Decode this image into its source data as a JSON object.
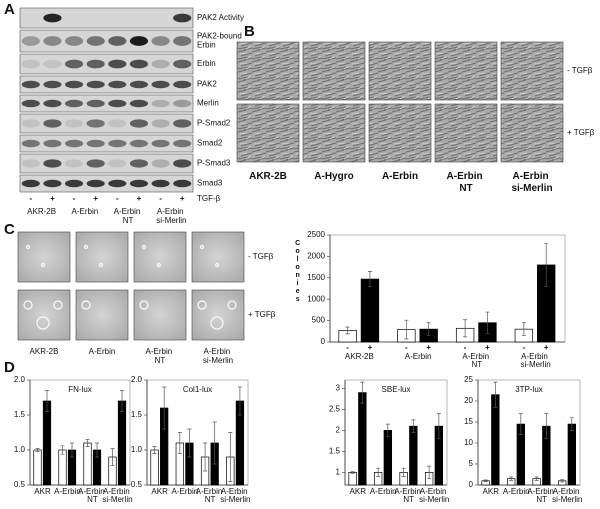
{
  "panel_labels": [
    "A",
    "B",
    "C",
    "D"
  ],
  "blot": {
    "rows": [
      [
        "PAK2 Activity"
      ],
      [
        "PAK2-bound",
        "Erbin"
      ],
      [
        "Erbin"
      ],
      [
        "PAK2"
      ],
      [
        "Merlin"
      ],
      [
        "P-Smad2"
      ],
      [
        "Smad2"
      ],
      [
        "P-Smad3"
      ],
      [
        "Smad3"
      ]
    ],
    "lanes": [
      "-",
      "+",
      "-",
      "+",
      "-",
      "+",
      "-",
      "+"
    ],
    "treatment": "TGF-β",
    "cells": [
      "AKR-2B",
      "A-Erbin",
      "A-Erbin NT",
      "A-Erbin si-Merlin"
    ]
  },
  "morphology": {
    "cells": [
      "AKR-2B",
      "A-Hygro",
      "A-Erbin",
      "A-Erbin NT",
      "A-Erbin si-Merlin"
    ],
    "conditions": [
      "- TGFβ",
      "+ TGFβ"
    ]
  },
  "soft_agar": {
    "cells": [
      "AKR-2B",
      "A-Erbin",
      "A-Erbin NT",
      "A-Erbin si-Merlin"
    ],
    "conditions": [
      "- TGFβ",
      "+ TGFβ"
    ]
  },
  "chart_data": [
    {
      "type": "bar",
      "y_label": "Colonies",
      "categories": [
        "AKR-2B",
        "A-Erbin",
        "A-Erbin NT",
        "A-Erbin si-Merlin"
      ],
      "series": [
        {
          "name": "-",
          "color": "#ffffff",
          "values": [
            270,
            290,
            320,
            300
          ],
          "errors": [
            80,
            220,
            200,
            150
          ]
        },
        {
          "name": "+",
          "color": "#000000",
          "values": [
            1470,
            300,
            450,
            1800
          ],
          "errors": [
            180,
            150,
            250,
            500
          ]
        }
      ],
      "ylim": [
        0,
        2500
      ],
      "yticks": [
        0,
        500,
        1000,
        1500,
        2000,
        2500
      ]
    },
    {
      "type": "bar",
      "title": "FN-lux",
      "categories": [
        "AKR",
        "A-Erbin",
        "A-Erbin NT",
        "A-Erbin si-Merlin"
      ],
      "series": [
        {
          "color": "#ffffff",
          "values": [
            1.0,
            1.0,
            1.1,
            0.9
          ],
          "errors": [
            0.02,
            0.06,
            0.05,
            0.12
          ]
        },
        {
          "color": "#000000",
          "values": [
            1.7,
            1.0,
            1.0,
            1.7
          ],
          "errors": [
            0.15,
            0.1,
            0.1,
            0.15
          ]
        }
      ],
      "ylim": [
        0.5,
        2.0
      ],
      "yticks": [
        0.5,
        {
          "value": 1,
          "label": "1.0"
        },
        1.5,
        {
          "value": 2,
          "label": "2.0"
        }
      ]
    },
    {
      "type": "bar",
      "title": "Col1-lux",
      "categories": [
        "AKR",
        "A-Erbin",
        "A-Erbin NT",
        "A-Erbin si-Merlin"
      ],
      "series": [
        {
          "color": "#ffffff",
          "values": [
            1.0,
            1.1,
            0.9,
            0.9
          ],
          "errors": [
            0.05,
            0.15,
            0.2,
            0.35
          ]
        },
        {
          "color": "#000000",
          "values": [
            1.6,
            1.1,
            1.1,
            1.7
          ],
          "errors": [
            0.3,
            0.2,
            0.3,
            0.2
          ]
        }
      ],
      "ylim": [
        0.5,
        2.0
      ],
      "yticks": [
        0.5,
        {
          "value": 1,
          "label": "1.0"
        },
        1.5,
        {
          "value": 2,
          "label": "2.0"
        }
      ]
    },
    {
      "type": "bar",
      "title": "SBE-lux",
      "categories": [
        "AKR",
        "A-Erbin",
        "A-Erbin NT",
        "A-Erbin si-Merlin"
      ],
      "series": [
        {
          "color": "#ffffff",
          "values": [
            1.0,
            1.0,
            1.0,
            1.0
          ],
          "errors": [
            0.02,
            0.1,
            0.1,
            0.15
          ]
        },
        {
          "color": "#000000",
          "values": [
            2.9,
            2.0,
            2.1,
            2.1
          ],
          "errors": [
            0.25,
            0.15,
            0.15,
            0.3
          ]
        }
      ],
      "ylim": [
        0.7,
        3.2
      ],
      "yticks": [
        1,
        1.5,
        2,
        2.5,
        3
      ]
    },
    {
      "type": "bar",
      "title": "3TP-lux",
      "categories": [
        "AKR",
        "A-Erbin",
        "A-Erbin NT",
        "A-Erbin si-Merlin"
      ],
      "series": [
        {
          "color": "#ffffff",
          "values": [
            1,
            1.5,
            1.5,
            1
          ],
          "errors": [
            0.2,
            0.4,
            0.4,
            0.3
          ]
        },
        {
          "color": "#000000",
          "values": [
            21.5,
            14.5,
            14,
            14.5
          ],
          "errors": [
            3,
            2.5,
            3,
            1.5
          ]
        }
      ],
      "ylim": [
        0,
        25
      ],
      "yticks": [
        0,
        5,
        10,
        15,
        20,
        25
      ]
    }
  ]
}
